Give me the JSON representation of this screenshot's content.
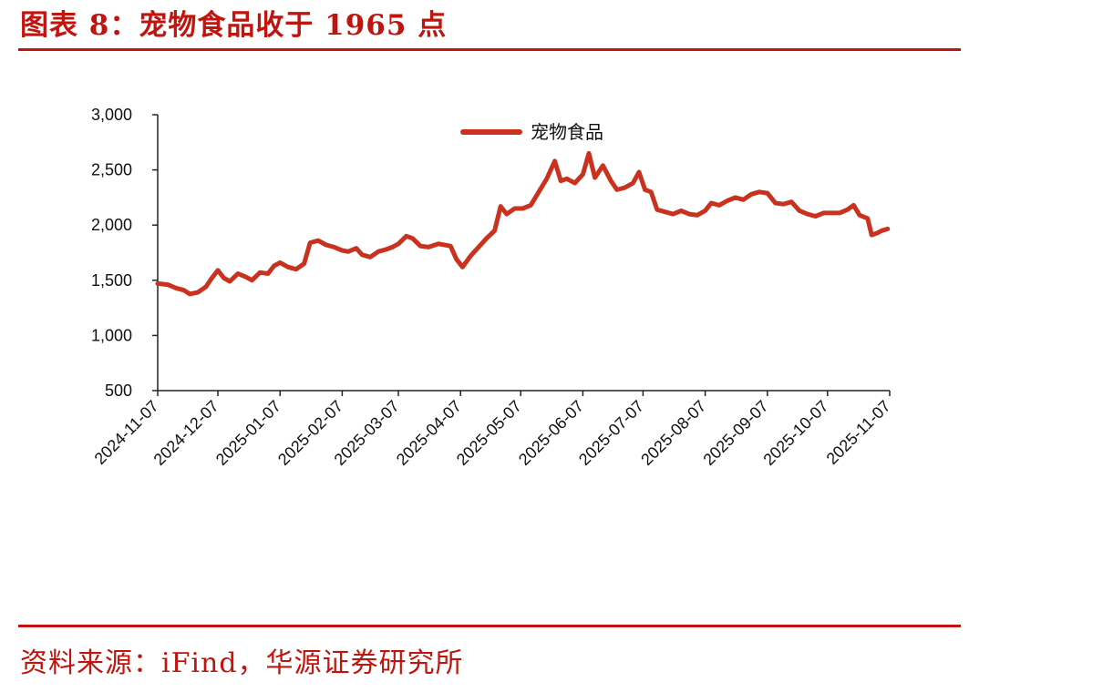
{
  "figure": {
    "title": "图表 8：宠物食品收于 1965 点",
    "source": "资料来源：iFind，华源证券研究所",
    "accent_color": "#c0150f"
  },
  "chart_data": {
    "type": "line",
    "title": "",
    "xlabel": "",
    "ylabel": "",
    "ylim": [
      500,
      3000
    ],
    "yticks": [
      "3,000",
      "2,500",
      "2,000",
      "1,500",
      "1,000",
      "500"
    ],
    "ytick_values": [
      3000,
      2500,
      2000,
      1500,
      1000,
      500
    ],
    "xticks": [
      "2024-11-07",
      "2024-12-07",
      "2025-01-07",
      "2025-02-07",
      "2025-03-07",
      "2025-04-07",
      "2025-05-07",
      "2025-06-07",
      "2025-07-07",
      "2025-08-07",
      "2025-09-07",
      "2025-10-07",
      "2025-11-07"
    ],
    "legend": "top-center",
    "grid": false,
    "series": [
      {
        "name": "宠物食品",
        "color": "#c8321e",
        "points": [
          [
            "2024-11-07",
            1470
          ],
          [
            "2024-11-12",
            1460
          ],
          [
            "2024-11-16",
            1430
          ],
          [
            "2024-11-20",
            1410
          ],
          [
            "2024-11-23",
            1375
          ],
          [
            "2024-11-27",
            1390
          ],
          [
            "2024-12-01",
            1440
          ],
          [
            "2024-12-04",
            1520
          ],
          [
            "2024-12-07",
            1590
          ],
          [
            "2024-12-10",
            1520
          ],
          [
            "2024-12-13",
            1490
          ],
          [
            "2024-12-17",
            1560
          ],
          [
            "2024-12-21",
            1530
          ],
          [
            "2024-12-24",
            1500
          ],
          [
            "2024-12-28",
            1570
          ],
          [
            "2025-01-01",
            1560
          ],
          [
            "2025-01-04",
            1630
          ],
          [
            "2025-01-07",
            1660
          ],
          [
            "2025-01-11",
            1620
          ],
          [
            "2025-01-15",
            1600
          ],
          [
            "2025-01-19",
            1650
          ],
          [
            "2025-01-22",
            1840
          ],
          [
            "2025-01-26",
            1860
          ],
          [
            "2025-01-30",
            1820
          ],
          [
            "2025-02-03",
            1800
          ],
          [
            "2025-02-07",
            1770
          ],
          [
            "2025-02-10",
            1760
          ],
          [
            "2025-02-14",
            1790
          ],
          [
            "2025-02-17",
            1730
          ],
          [
            "2025-02-21",
            1710
          ],
          [
            "2025-02-25",
            1760
          ],
          [
            "2025-03-01",
            1780
          ],
          [
            "2025-03-04",
            1800
          ],
          [
            "2025-03-07",
            1830
          ],
          [
            "2025-03-11",
            1900
          ],
          [
            "2025-03-14",
            1880
          ],
          [
            "2025-03-18",
            1810
          ],
          [
            "2025-03-22",
            1800
          ],
          [
            "2025-03-27",
            1830
          ],
          [
            "2025-04-02",
            1810
          ],
          [
            "2025-04-05",
            1690
          ],
          [
            "2025-04-08",
            1620
          ],
          [
            "2025-04-12",
            1720
          ],
          [
            "2025-04-16",
            1800
          ],
          [
            "2025-04-20",
            1880
          ],
          [
            "2025-04-24",
            1950
          ],
          [
            "2025-04-27",
            2170
          ],
          [
            "2025-04-30",
            2100
          ],
          [
            "2025-05-04",
            2150
          ],
          [
            "2025-05-08",
            2150
          ],
          [
            "2025-05-12",
            2180
          ],
          [
            "2025-05-16",
            2300
          ],
          [
            "2025-05-20",
            2420
          ],
          [
            "2025-05-24",
            2580
          ],
          [
            "2025-05-27",
            2400
          ],
          [
            "2025-05-30",
            2420
          ],
          [
            "2025-06-03",
            2380
          ],
          [
            "2025-06-07",
            2460
          ],
          [
            "2025-06-10",
            2650
          ],
          [
            "2025-06-13",
            2430
          ],
          [
            "2025-06-17",
            2540
          ],
          [
            "2025-06-21",
            2400
          ],
          [
            "2025-06-24",
            2320
          ],
          [
            "2025-06-28",
            2340
          ],
          [
            "2025-07-02",
            2380
          ],
          [
            "2025-07-05",
            2480
          ],
          [
            "2025-07-08",
            2320
          ],
          [
            "2025-07-11",
            2300
          ],
          [
            "2025-07-14",
            2140
          ],
          [
            "2025-07-18",
            2120
          ],
          [
            "2025-07-22",
            2100
          ],
          [
            "2025-07-26",
            2130
          ],
          [
            "2025-07-30",
            2100
          ],
          [
            "2025-08-03",
            2090
          ],
          [
            "2025-08-07",
            2130
          ],
          [
            "2025-08-10",
            2200
          ],
          [
            "2025-08-14",
            2180
          ],
          [
            "2025-08-18",
            2220
          ],
          [
            "2025-08-22",
            2250
          ],
          [
            "2025-08-26",
            2230
          ],
          [
            "2025-08-30",
            2280
          ],
          [
            "2025-09-03",
            2300
          ],
          [
            "2025-09-07",
            2290
          ],
          [
            "2025-09-11",
            2200
          ],
          [
            "2025-09-15",
            2190
          ],
          [
            "2025-09-19",
            2210
          ],
          [
            "2025-09-23",
            2130
          ],
          [
            "2025-09-27",
            2100
          ],
          [
            "2025-10-01",
            2080
          ],
          [
            "2025-10-05",
            2110
          ],
          [
            "2025-10-09",
            2110
          ],
          [
            "2025-10-13",
            2110
          ],
          [
            "2025-10-17",
            2140
          ],
          [
            "2025-10-20",
            2180
          ],
          [
            "2025-10-23",
            2090
          ],
          [
            "2025-10-27",
            2060
          ],
          [
            "2025-10-29",
            1910
          ],
          [
            "2025-11-01",
            1930
          ],
          [
            "2025-11-03",
            1950
          ],
          [
            "2025-11-06",
            1965
          ]
        ]
      }
    ]
  }
}
